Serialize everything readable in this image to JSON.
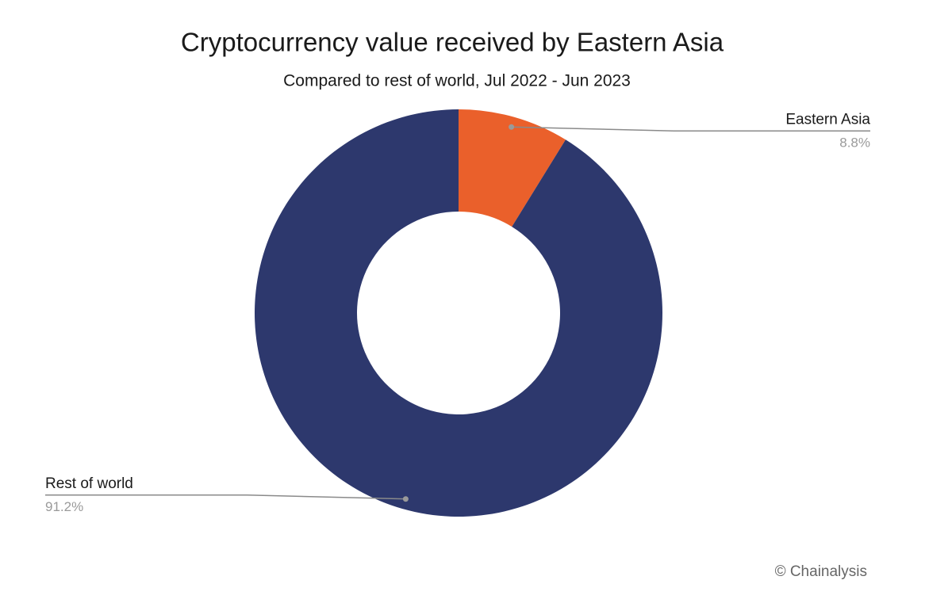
{
  "chart_data": {
    "type": "donut",
    "title": "Cryptocurrency value received by Eastern Asia",
    "subtitle": "Compared to rest of world, Jul 2022 - Jun 2023",
    "categories": [
      "Eastern Asia",
      "Rest of world"
    ],
    "values": [
      8.8,
      91.2
    ],
    "value_labels": [
      "8.8%",
      "91.2%"
    ],
    "colors": [
      "#ea602b",
      "#2d386d"
    ],
    "source": "© Chainalysis"
  }
}
